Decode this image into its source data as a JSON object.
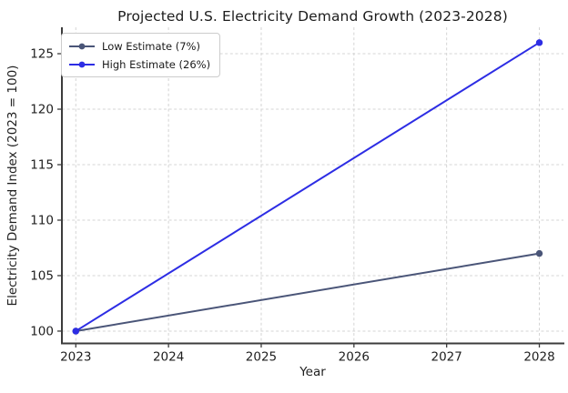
{
  "chart_data": {
    "type": "line",
    "title": "Projected U.S. Electricity Demand Growth (2023-2028)",
    "xlabel": "Year",
    "ylabel": "Electricity Demand Index (2023 = 100)",
    "x": [
      2023,
      2028
    ],
    "series": [
      {
        "name": "Low Estimate (7%)",
        "color": "#4a5578",
        "values": [
          100,
          107
        ]
      },
      {
        "name": "High Estimate (26%)",
        "color": "#2d2de4",
        "values": [
          100,
          126
        ]
      }
    ],
    "xticks": [
      2023,
      2024,
      2025,
      2026,
      2027,
      2028
    ],
    "yticks": [
      100,
      105,
      110,
      115,
      120,
      125
    ],
    "xlim": [
      2022.85,
      2028.26
    ],
    "ylim": [
      98.89,
      127.38
    ],
    "grid": true,
    "legend_position": "upper-left",
    "colors": {
      "grid": "#d4d4d4",
      "spine": "#3c3c3c",
      "tick_text": "#1f1f1f",
      "background": "#ffffff"
    }
  }
}
